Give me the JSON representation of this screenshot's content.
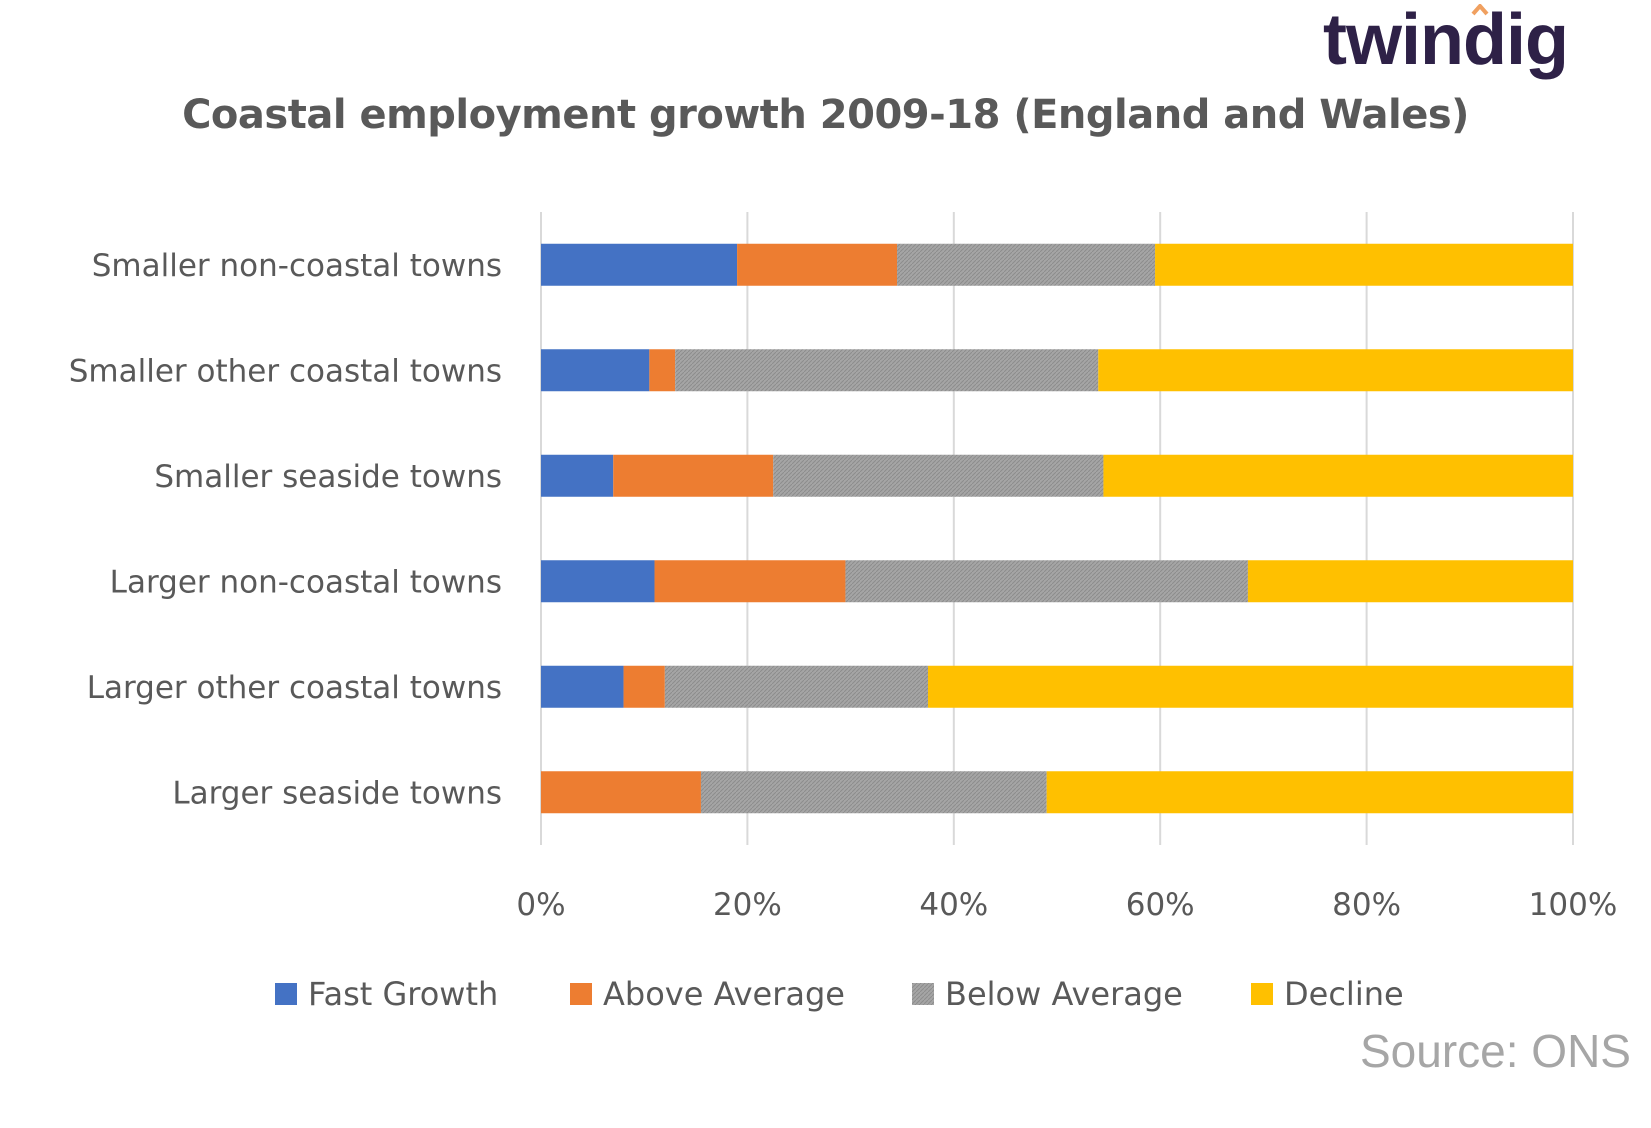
{
  "brand": {
    "logo_text": "twindig",
    "text_color": "#2e2147",
    "accent_color": "#f0a060"
  },
  "source_text": "Source: ONS",
  "chart_data": {
    "type": "bar",
    "orientation": "horizontal",
    "stacked": true,
    "percent": true,
    "title": "Coastal employment growth 2009-18 (England and Wales)",
    "categories": [
      "Smaller non-coastal towns",
      "Smaller other coastal towns",
      "Smaller seaside towns",
      "Larger non-coastal towns",
      "Larger other coastal towns",
      "Larger seaside towns"
    ],
    "series": [
      {
        "name": "Fast Growth",
        "color": "#4472c4",
        "values": [
          19,
          10.5,
          7,
          11,
          8,
          0
        ]
      },
      {
        "name": "Above Average",
        "color": "#ed7d31",
        "values": [
          15.5,
          2.5,
          15.5,
          18.5,
          4,
          15.5
        ]
      },
      {
        "name": "Below Average",
        "color": "#a5a5a5",
        "values": [
          25,
          41,
          32,
          39,
          25.5,
          33.5
        ]
      },
      {
        "name": "Decline",
        "color": "#ffc000",
        "values": [
          40.5,
          46,
          45.5,
          31.5,
          62.5,
          51
        ]
      }
    ],
    "xlim": [
      0,
      100
    ],
    "xticks": [
      "0%",
      "20%",
      "40%",
      "60%",
      "80%",
      "100%"
    ],
    "xlabel": "",
    "ylabel": "",
    "grid": "vertical",
    "legend": "bottom"
  }
}
